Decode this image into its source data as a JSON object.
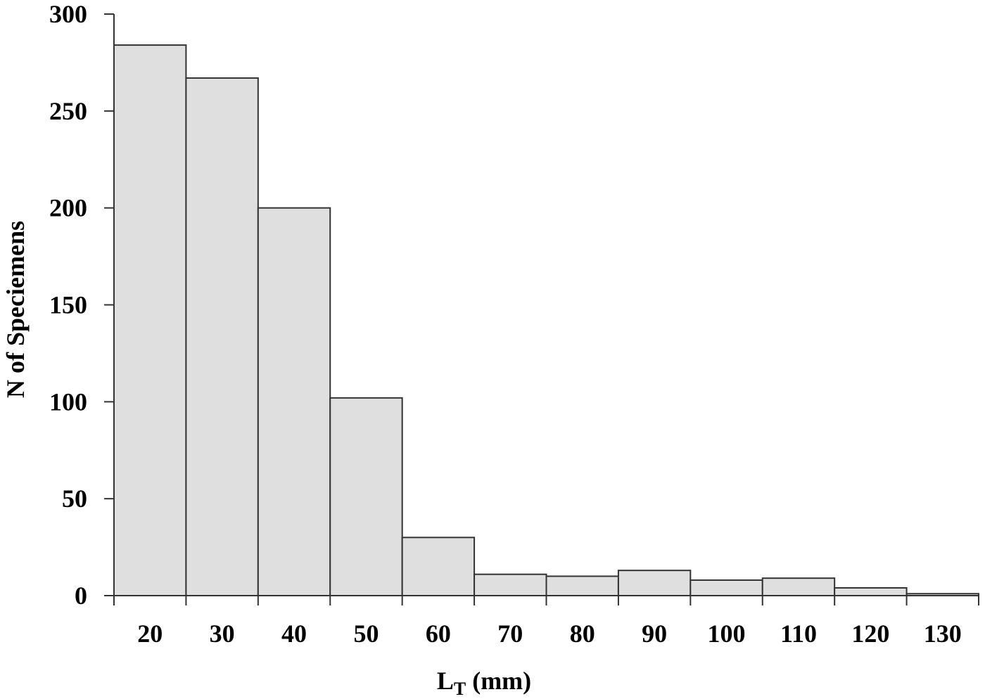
{
  "chart_data": {
    "type": "bar",
    "title": "",
    "xlabel": "L_T (mm)",
    "xlabel_main": "L",
    "xlabel_sub": "T",
    "xlabel_rest": " (mm)",
    "ylabel": "N of Speciemens",
    "ylim": [
      0,
      300
    ],
    "yticks": [
      0,
      50,
      100,
      150,
      200,
      250,
      300
    ],
    "grid": false,
    "legend": null,
    "categories": [
      "20",
      "30",
      "40",
      "50",
      "60",
      "70",
      "80",
      "90",
      "100",
      "110",
      "120",
      "130"
    ],
    "values": [
      284,
      267,
      200,
      102,
      30,
      11,
      10,
      13,
      8,
      9,
      4,
      1
    ],
    "colors": {
      "bar_fill": "#dfdfdf",
      "bar_stroke": "#333333",
      "axis": "#333333"
    }
  }
}
